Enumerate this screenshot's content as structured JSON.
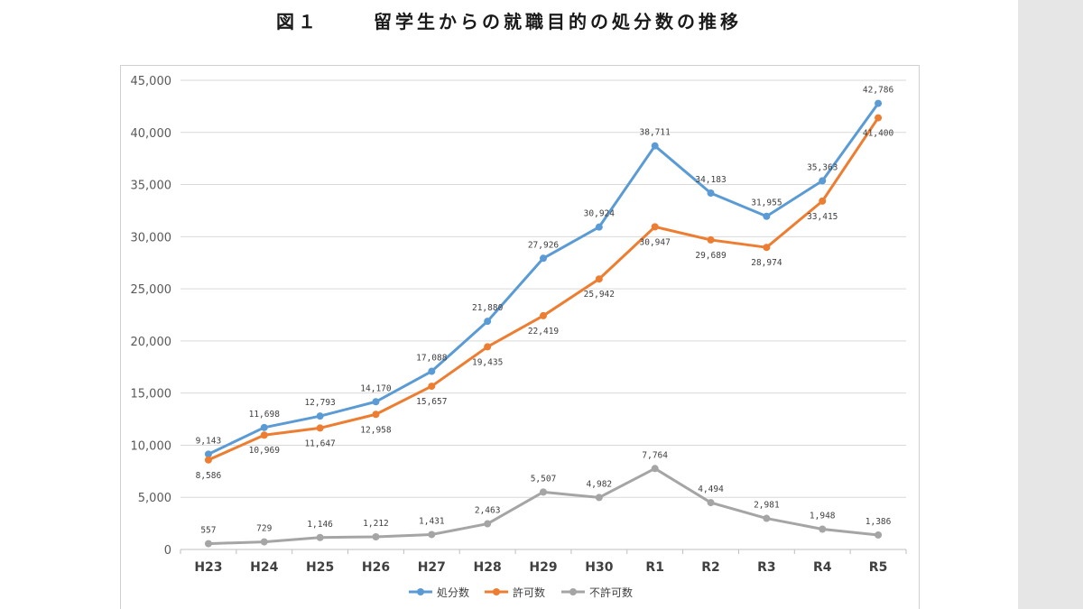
{
  "page": {
    "figure_number": "図１",
    "figure_title": "留学生からの就職目的の処分数の推移"
  },
  "chart_data": {
    "type": "line",
    "categories": [
      "H23",
      "H24",
      "H25",
      "H26",
      "H27",
      "H28",
      "H29",
      "H30",
      "R1",
      "R2",
      "R3",
      "R4",
      "R5"
    ],
    "ylim": [
      0,
      45000
    ],
    "yticks": [
      0,
      5000,
      10000,
      15000,
      20000,
      25000,
      30000,
      35000,
      40000,
      45000
    ],
    "ytick_labels": [
      "0",
      "5,000",
      "10,000",
      "15,000",
      "20,000",
      "25,000",
      "30,000",
      "35,000",
      "40,000",
      "45,000"
    ],
    "grid": true,
    "legend_position": "bottom",
    "series": [
      {
        "name": "処分数",
        "color": "#5b9bd5",
        "values": [
          9143,
          11698,
          12793,
          14170,
          17088,
          21880,
          27926,
          30924,
          38711,
          34183,
          31955,
          35363,
          42786
        ],
        "labels": [
          "9,143",
          "11,698",
          "12,793",
          "14,170",
          "17,088",
          "21,880",
          "27,926",
          "30,924",
          "38,711",
          "34,183",
          "31,955",
          "35,363",
          "42,786"
        ]
      },
      {
        "name": "許可数",
        "color": "#ed7d31",
        "values": [
          8586,
          10969,
          11647,
          12958,
          15657,
          19435,
          22419,
          25942,
          30947,
          29689,
          28974,
          33415,
          41400
        ],
        "labels": [
          "8,586",
          "10,969",
          "11,647",
          "12,958",
          "15,657",
          "19,435",
          "22,419",
          "25,942",
          "30,947",
          "29,689",
          "28,974",
          "33,415",
          "41,400"
        ]
      },
      {
        "name": "不許可数",
        "color": "#a5a5a5",
        "values": [
          557,
          729,
          1146,
          1212,
          1431,
          2463,
          5507,
          4982,
          7764,
          4494,
          2981,
          1948,
          1386
        ],
        "labels": [
          "557",
          "729",
          "1,146",
          "1,212",
          "1,431",
          "2,463",
          "5,507",
          "4,982",
          "7,764",
          "4,494",
          "2,981",
          "1,948",
          "1,386"
        ]
      }
    ]
  }
}
